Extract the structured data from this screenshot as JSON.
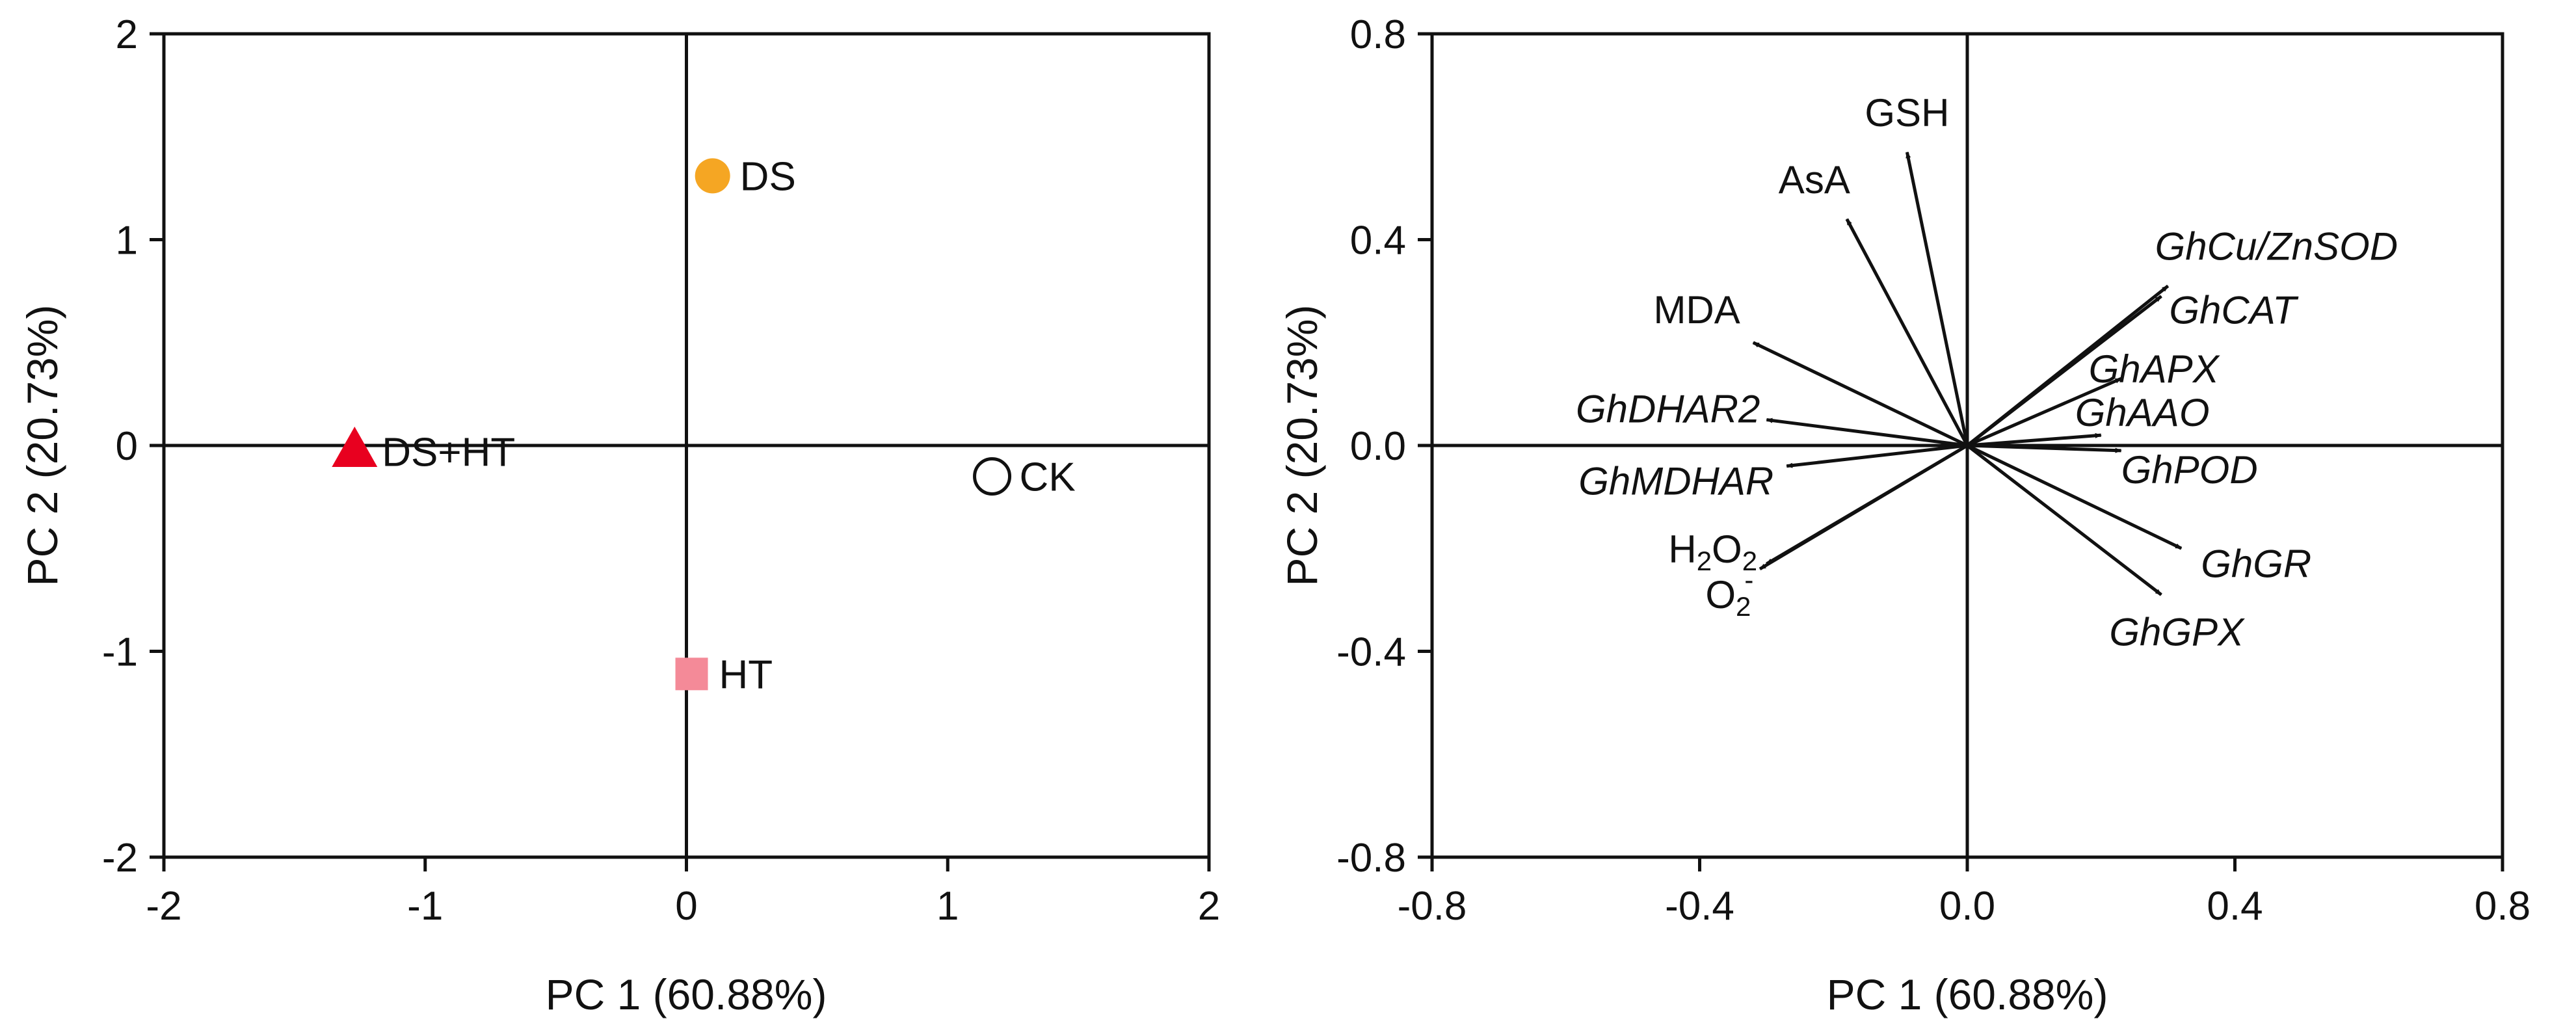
{
  "chart_data": [
    {
      "type": "scatter",
      "xlabel": "PC 1 (60.88%)",
      "ylabel": "PC 2 (20.73%)",
      "xlim": [
        -2,
        2
      ],
      "ylim": [
        -2,
        2
      ],
      "xticks": [
        "-2",
        "-1",
        "0",
        "1",
        "2"
      ],
      "yticks": [
        "-2",
        "-1",
        "0",
        "1",
        "2"
      ],
      "grid": false,
      "points": [
        {
          "label": "DS",
          "x": 0.1,
          "y": 1.31,
          "marker": "circle",
          "color": "#F5A623",
          "filled": true
        },
        {
          "label": "DS+HT",
          "x": -1.27,
          "y": -0.03,
          "marker": "triangle",
          "color": "#E8001F",
          "filled": true
        },
        {
          "label": "CK",
          "x": 1.17,
          "y": -0.15,
          "marker": "circle",
          "color": "#111111",
          "filled": false
        },
        {
          "label": "HT",
          "x": 0.02,
          "y": -1.11,
          "marker": "square",
          "color": "#F48A98",
          "filled": true
        }
      ]
    },
    {
      "type": "biplot-loadings",
      "xlabel": "PC 1 (60.88%)",
      "ylabel": "PC 2 (20.73%)",
      "xlim": [
        -0.8,
        0.8
      ],
      "ylim": [
        -0.8,
        0.8
      ],
      "xticks": [
        "-0.8",
        "-0.4",
        "0.0",
        "0.4",
        "0.8"
      ],
      "yticks": [
        "-0.8",
        "-0.4",
        "0.0",
        "0.4",
        "0.8"
      ],
      "grid": false,
      "vectors": [
        {
          "label": "GSH",
          "x": -0.09,
          "y": 0.57
        },
        {
          "label": "AsA",
          "x": -0.18,
          "y": 0.44
        },
        {
          "label": "MDA",
          "x": -0.32,
          "y": 0.2
        },
        {
          "label": "GhDHAR2",
          "x": -0.3,
          "y": 0.05,
          "italic": true
        },
        {
          "label": "GhMDHAR",
          "x": -0.27,
          "y": -0.04,
          "italic": true
        },
        {
          "label": "H2O2",
          "x": -0.31,
          "y": -0.24
        },
        {
          "label": "O2-",
          "x": -0.3,
          "y": -0.23
        },
        {
          "label": "GhCu/ZnSOD",
          "x": 0.3,
          "y": 0.31,
          "italic": true
        },
        {
          "label": "GhCAT",
          "x": 0.29,
          "y": 0.29,
          "italic": true
        },
        {
          "label": "GhAPX",
          "x": 0.23,
          "y": 0.13,
          "italic": true
        },
        {
          "label": "GhAAO",
          "x": 0.2,
          "y": 0.02,
          "italic": true
        },
        {
          "label": "GhPOD",
          "x": 0.23,
          "y": -0.01,
          "italic": true
        },
        {
          "label": "GhGR",
          "x": 0.32,
          "y": -0.2,
          "italic": true
        },
        {
          "label": "GhGPX",
          "x": 0.29,
          "y": -0.29,
          "italic": true
        }
      ]
    }
  ],
  "colors": {
    "axis": "#111111",
    "DS": "#F5A623",
    "DS+HT": "#E8001F",
    "HT": "#F48A98"
  }
}
